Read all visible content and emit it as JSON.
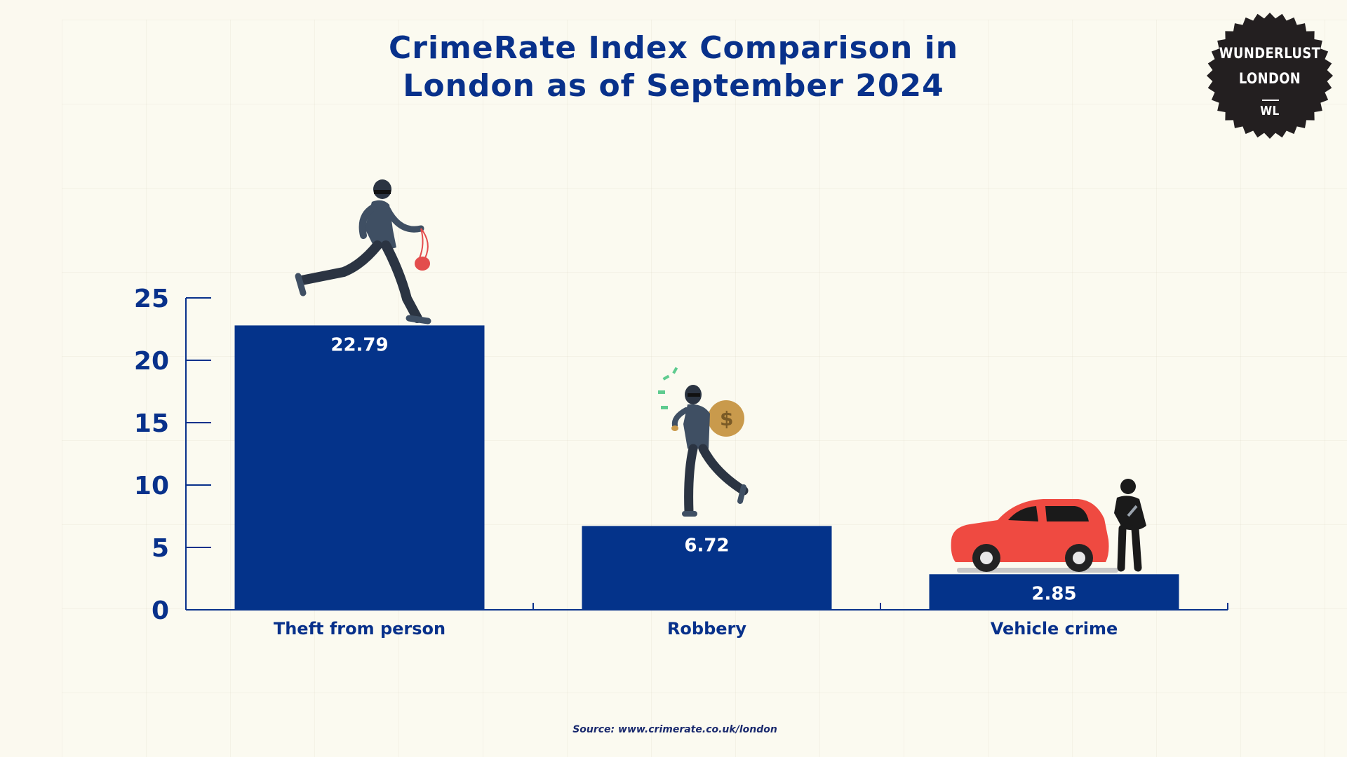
{
  "chart_data": {
    "type": "bar",
    "title": "CrimeRate Index Comparison in London as of September 2024",
    "title_lines": [
      "CrimeRate Index Comparison in",
      "London as of September 2024"
    ],
    "categories": [
      "Theft from person",
      "Robbery",
      "Vehicle crime"
    ],
    "values": [
      22.79,
      6.72,
      2.85
    ],
    "data_labels": [
      "22.79",
      "6.72",
      "2.85"
    ],
    "y_ticks": [
      0,
      5,
      10,
      15,
      20,
      25
    ],
    "ylim": [
      0,
      25
    ],
    "xlabel": "",
    "ylabel": "",
    "grid": false,
    "legend": "none",
    "bar_color": "#04338a",
    "label_color": "#08318b"
  },
  "logo": {
    "line1": "WUNDERLUST",
    "line2": "LONDON",
    "line3": "WL",
    "color": "#231f20"
  },
  "illustrations": [
    "thief-running-with-purse-icon",
    "thief-with-money-bag-icon",
    "red-car-with-thief-icon"
  ],
  "source_text": "Source: www.crimerate.co.uk/london"
}
